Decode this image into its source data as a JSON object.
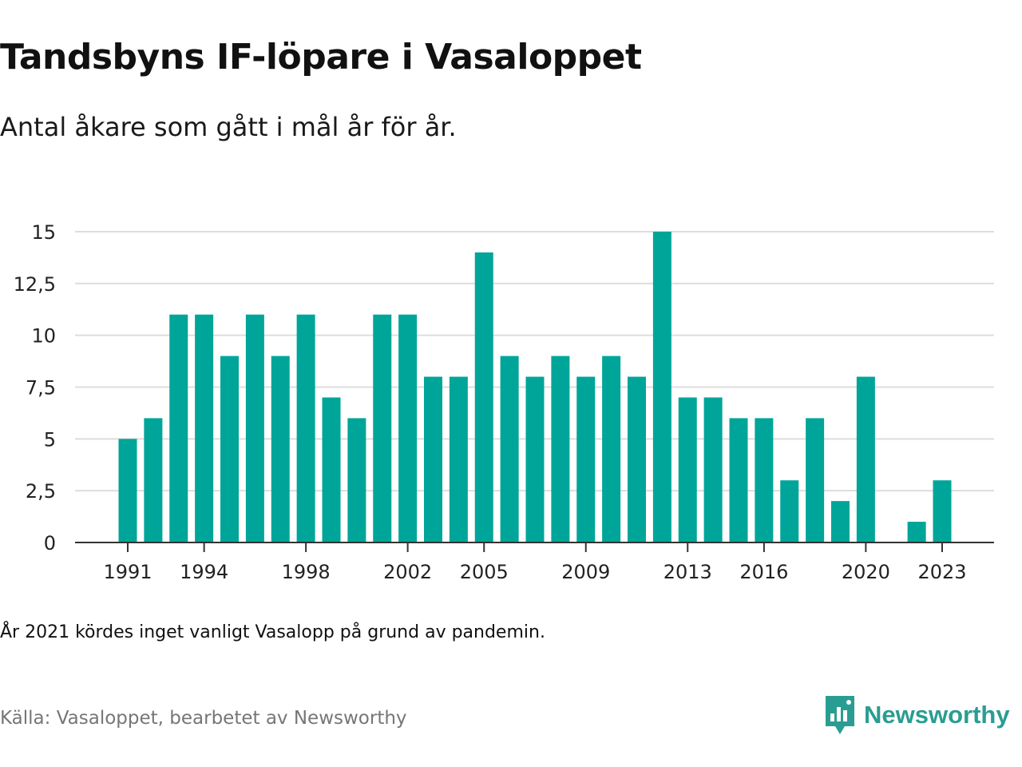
{
  "header": {
    "title": "Tandsbyns IF-löpare i Vasaloppet",
    "subtitle": "Antal åkare som gått i mål år för år."
  },
  "footer": {
    "note": "År 2021 kördes inget vanligt Vasalopp på grund av pandemin.",
    "source": "Källa: Vasaloppet, bearbetet av Newsworthy",
    "logo_text": "Newsworthy"
  },
  "colors": {
    "bar": "#00a599",
    "grid": "#dddddd",
    "axis": "#333333",
    "logo": "#2a9d92"
  },
  "chart_data": {
    "type": "bar",
    "categories": [
      "1991",
      "1992",
      "1993",
      "1994",
      "1995",
      "1996",
      "1997",
      "1998",
      "1999",
      "2000",
      "2001",
      "2002",
      "2003",
      "2004",
      "2005",
      "2006",
      "2007",
      "2008",
      "2009",
      "2010",
      "2011",
      "2012",
      "2013",
      "2014",
      "2015",
      "2016",
      "2017",
      "2018",
      "2019",
      "2020",
      "2021",
      "2022",
      "2023"
    ],
    "values": [
      5,
      6,
      11,
      11,
      9,
      11,
      9,
      11,
      7,
      6,
      11,
      11,
      8,
      8,
      14,
      9,
      8,
      9,
      8,
      9,
      8,
      15,
      7,
      7,
      6,
      6,
      3,
      6,
      2,
      8,
      0,
      1,
      3
    ],
    "x_tick_labels": [
      "1991",
      "1994",
      "1998",
      "2002",
      "2005",
      "2009",
      "2013",
      "2016",
      "2020",
      "2023"
    ],
    "y_ticks": [
      0,
      2.5,
      5,
      7.5,
      10,
      12.5,
      15
    ],
    "y_tick_labels": [
      "0",
      "2,5",
      "5",
      "7,5",
      "10",
      "12,5",
      "15"
    ],
    "ylim": [
      0,
      15
    ],
    "grid": true,
    "legend": "none"
  }
}
